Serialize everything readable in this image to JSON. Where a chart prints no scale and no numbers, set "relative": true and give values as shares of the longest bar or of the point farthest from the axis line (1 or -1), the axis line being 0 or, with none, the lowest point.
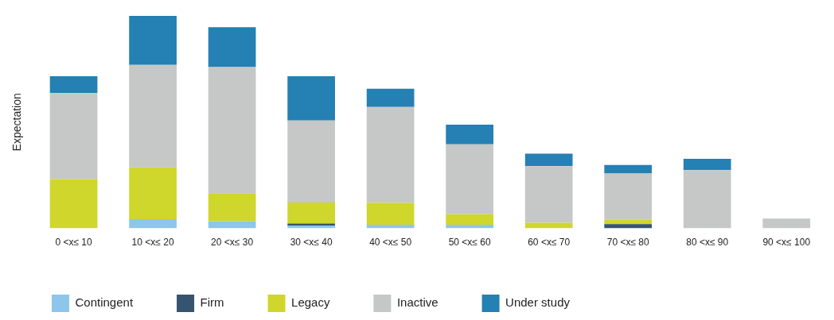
{
  "chart_data": {
    "type": "bar",
    "ylabel": "Expectation",
    "relative": true,
    "stacked": true,
    "legend": "bottom",
    "categories": [
      "0 <x≤ 10",
      "10 <x≤ 20",
      "20 <x≤ 30",
      "30 <x≤ 40",
      "40 <x≤ 50",
      "50 <x≤ 60",
      "60 <x≤ 70",
      "70 <x≤ 80",
      "80 <x≤ 90",
      "90 <x≤ 100"
    ],
    "series": [
      {
        "name": "Contingent",
        "color": "#8dc6ea",
        "values": [
          0,
          0.043,
          0.034,
          0.013,
          0.017,
          0.017,
          0,
          0,
          0,
          0
        ]
      },
      {
        "name": "Firm",
        "color": "#36546f",
        "values": [
          0,
          0,
          0,
          0.01,
          0,
          0,
          0,
          0.02,
          0,
          0
        ]
      },
      {
        "name": "Legacy",
        "color": "#cfd62c",
        "values": [
          0.232,
          0.244,
          0.132,
          0.099,
          0.103,
          0.05,
          0.027,
          0.021,
          0,
          0
        ]
      },
      {
        "name": "Inactive",
        "color": "#c5c8c7",
        "values": [
          0.405,
          0.482,
          0.593,
          0.386,
          0.451,
          0.329,
          0.266,
          0.217,
          0.274,
          0.046
        ]
      },
      {
        "name": "Under study",
        "color": "#2580b3",
        "values": [
          0.079,
          0.231,
          0.188,
          0.208,
          0.086,
          0.092,
          0.059,
          0.04,
          0.053,
          0
        ]
      }
    ]
  }
}
